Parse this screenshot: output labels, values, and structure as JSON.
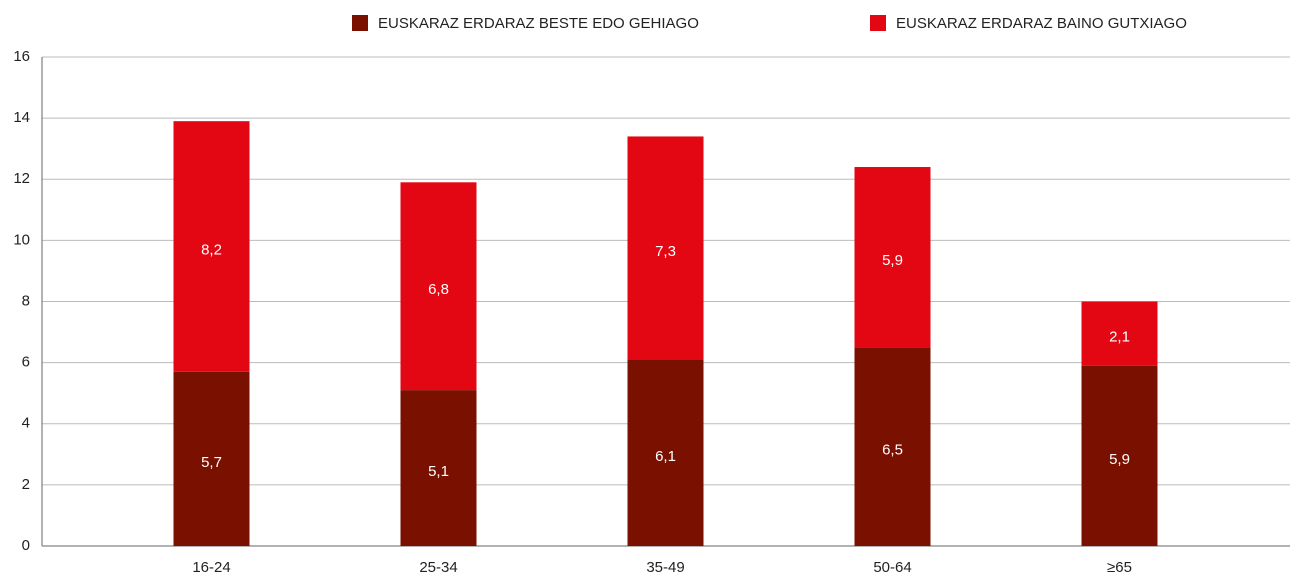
{
  "chart_data": {
    "type": "stacked_bar",
    "categories": [
      "16-24",
      "25-34",
      "35-49",
      "50-64",
      "≥65"
    ],
    "series": [
      {
        "name": "EUSKARAZ ERDARAZ BESTE EDO GEHIAGO",
        "color": "#7a1000",
        "values": [
          5.7,
          5.1,
          6.1,
          6.5,
          5.9
        ],
        "value_labels": [
          "5,7",
          "5,1",
          "6,1",
          "6,5",
          "5,9"
        ]
      },
      {
        "name": "EUSKARAZ ERDARAZ BAINO GUTXIAGO",
        "color": "#e30613",
        "values": [
          8.2,
          6.8,
          7.3,
          5.9,
          2.1
        ],
        "value_labels": [
          "8,2",
          "6,8",
          "7,3",
          "5,9",
          "2,1"
        ]
      }
    ],
    "ylim": [
      0,
      16
    ],
    "yticks": [
      0,
      2,
      4,
      6,
      8,
      10,
      12,
      14,
      16
    ],
    "grid": true
  }
}
